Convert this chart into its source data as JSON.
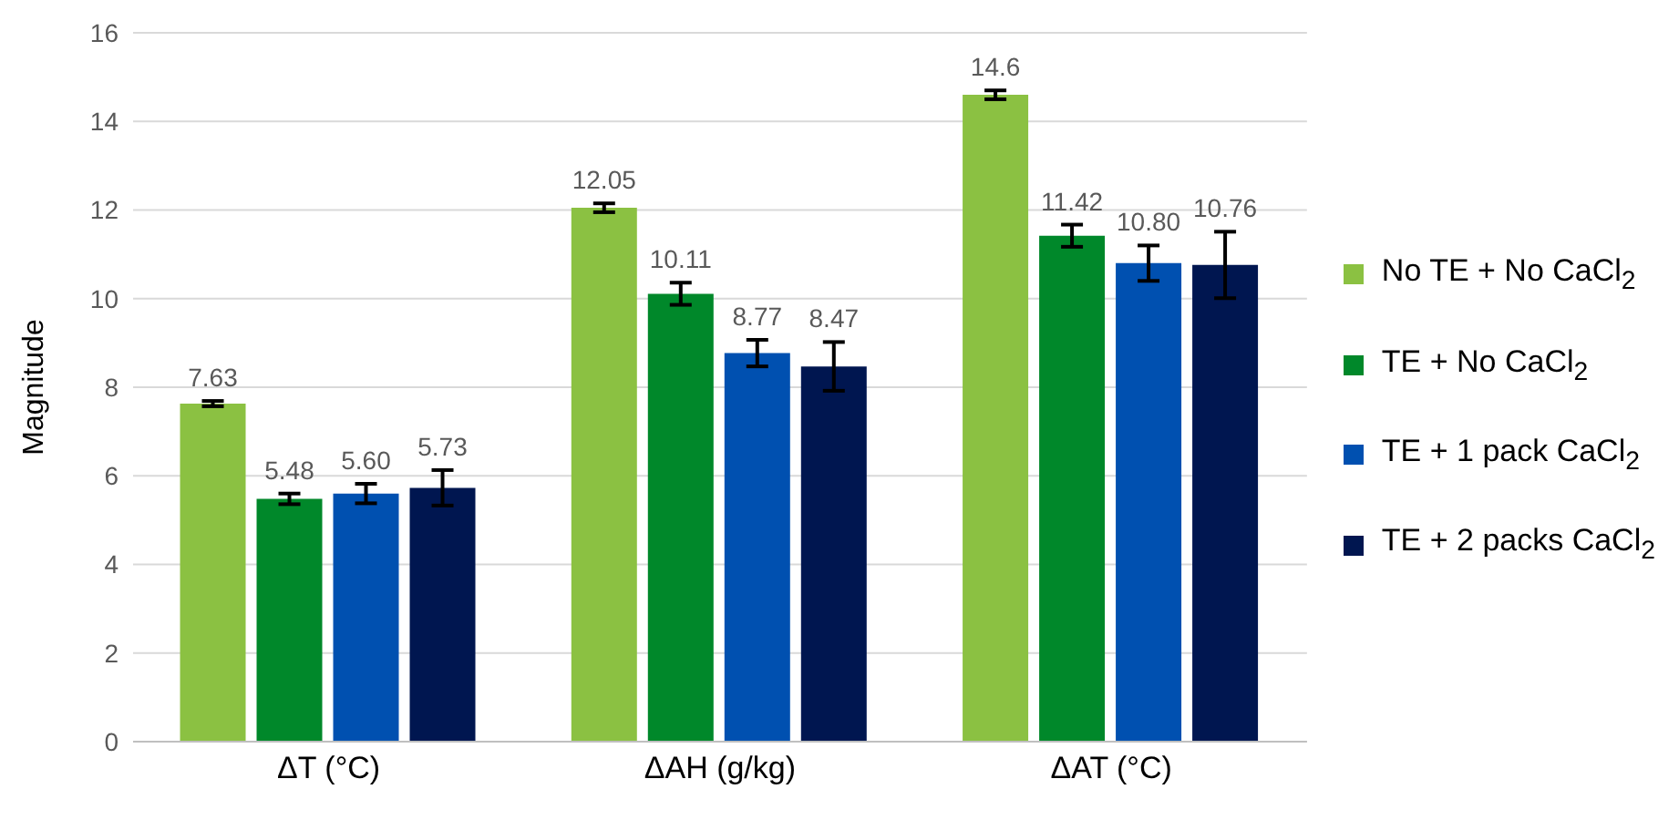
{
  "chart_data": {
    "type": "bar",
    "ylabel": "Magnitude",
    "categories": [
      "ΔT (°C)",
      "ΔAH (g/kg)",
      "ΔAT (°C)"
    ],
    "series": [
      {
        "name": "No TE + No CaCl$_{2}$",
        "color": "#8bc142",
        "values": [
          7.63,
          12.05,
          14.6
        ],
        "errors": [
          0.06,
          0.1,
          0.1
        ],
        "value_labels": [
          "7.63",
          "12.05",
          "14.6"
        ]
      },
      {
        "name": "TE + No CaCl$_{2}$",
        "color": "#00882a",
        "values": [
          5.48,
          10.11,
          11.42
        ],
        "errors": [
          0.12,
          0.25,
          0.25
        ],
        "value_labels": [
          "5.48",
          "10.11",
          "11.42"
        ]
      },
      {
        "name": "TE + 1 pack CaCl$_{2}$",
        "color": "#0050b0",
        "values": [
          5.6,
          8.77,
          10.8
        ],
        "errors": [
          0.22,
          0.3,
          0.4
        ],
        "value_labels": [
          "5.60",
          "8.77",
          "10.80"
        ]
      },
      {
        "name": "TE + 2 packs CaCl$_{2}$",
        "color": "#001650",
        "values": [
          5.73,
          8.47,
          10.76
        ],
        "errors": [
          0.4,
          0.55,
          0.75
        ],
        "value_labels": [
          "5.73",
          "8.47",
          "10.76"
        ]
      }
    ],
    "ylim": [
      0,
      16
    ],
    "yticks": [
      0,
      2,
      4,
      6,
      8,
      10,
      12,
      14,
      16
    ],
    "grid": "y",
    "legend": "right"
  }
}
